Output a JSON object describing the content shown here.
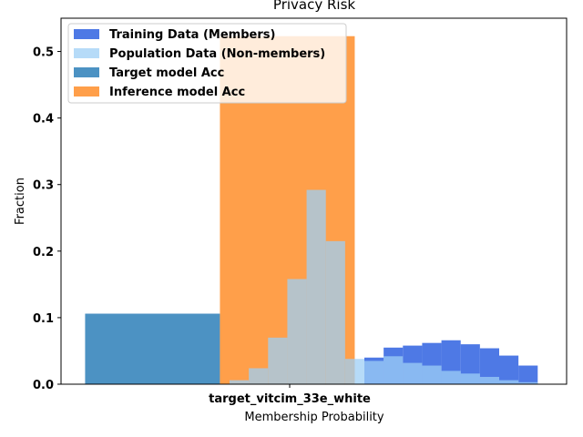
{
  "chart_data": {
    "type": "bar",
    "title": "Privacy Risk",
    "xlabel": "Membership Probability",
    "ylabel": "Fraction",
    "xtick_label": "target_vitcim_33e_white",
    "ylim": [
      0,
      0.55
    ],
    "yticks": [
      0.0,
      0.1,
      0.2,
      0.3,
      0.4,
      0.5
    ],
    "xlim": [
      -0.05,
      1.0
    ],
    "grid": false,
    "legend_position": "top-left",
    "series": [
      {
        "name": "Training Data (Members)",
        "kind": "histogram",
        "color": "#2f62e0",
        "alpha": 0.85,
        "bins": [
          0.3,
          0.34,
          0.38,
          0.42,
          0.46,
          0.5,
          0.54,
          0.58,
          0.62,
          0.66,
          0.7,
          0.74,
          0.78,
          0.82,
          0.86,
          0.9,
          0.94
        ],
        "values": [
          0.0,
          0.0,
          0.0,
          0.0,
          0.0,
          0.0,
          0.0,
          0.04,
          0.055,
          0.058,
          0.062,
          0.066,
          0.06,
          0.054,
          0.043,
          0.028,
          0.009
        ]
      },
      {
        "name": "Population Data (Non-members)",
        "kind": "histogram",
        "color": "#9dcff5",
        "alpha": 0.75,
        "bins": [
          0.3,
          0.34,
          0.38,
          0.42,
          0.46,
          0.5,
          0.54,
          0.58,
          0.62,
          0.66,
          0.7,
          0.74,
          0.78,
          0.82,
          0.86,
          0.9,
          0.94
        ],
        "values": [
          0.006,
          0.024,
          0.07,
          0.158,
          0.292,
          0.215,
          0.038,
          0.035,
          0.042,
          0.032,
          0.028,
          0.02,
          0.016,
          0.011,
          0.006,
          0.003,
          0.0
        ]
      },
      {
        "name": "Target model Acc",
        "kind": "bar",
        "color": "#1f77b4",
        "alpha": 0.8,
        "x_start": 0.0,
        "x_end": 0.28,
        "value": 0.106
      },
      {
        "name": "Inference model Acc",
        "kind": "bar",
        "color": "#ff7f0e",
        "alpha": 0.75,
        "x_start": 0.28,
        "x_end": 0.56,
        "value": 0.523
      }
    ]
  }
}
